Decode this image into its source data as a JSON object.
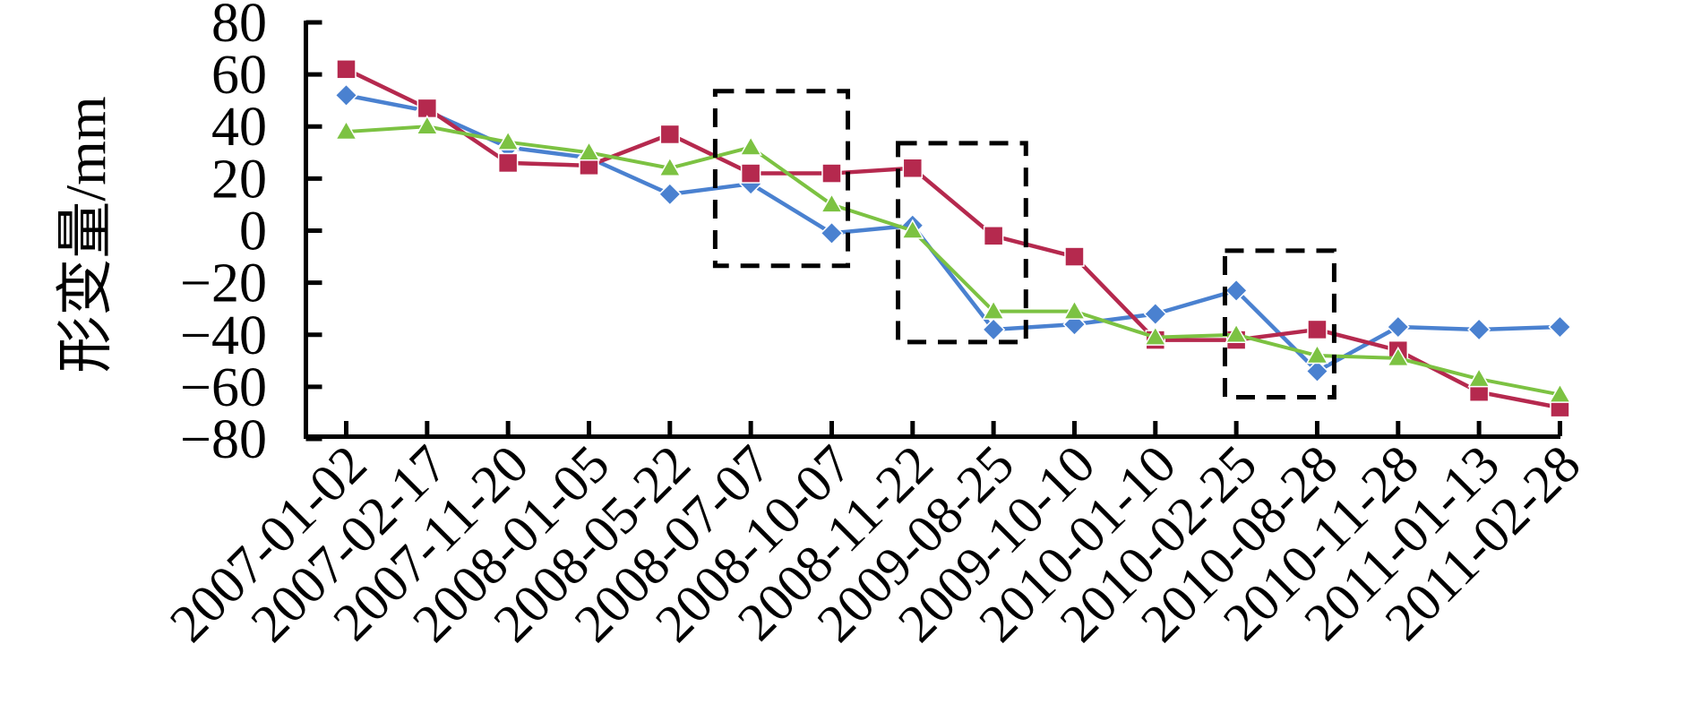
{
  "chart_data": {
    "type": "line",
    "title": "",
    "xlabel": "",
    "ylabel": "形变量/mm",
    "ylim": [
      -80,
      80
    ],
    "yticks": [
      80,
      60,
      40,
      20,
      0,
      -20,
      -40,
      -60,
      -80
    ],
    "grid": false,
    "legend": "none",
    "background": "#ffffff",
    "axis_color": "#000000",
    "categories": [
      "2007-01-02",
      "2007-02-17",
      "2007-11-20",
      "2008-01-05",
      "2008-05-22",
      "2008-07-07",
      "2008-10-07",
      "2008-11-22",
      "2009-08-25",
      "2009-10-10",
      "2010-01-10",
      "2010-02-25",
      "2010-08-28",
      "2010-11-28",
      "2011-01-13",
      "2011-02-28"
    ],
    "series": [
      {
        "name": "blue-diamond-series",
        "marker": "diamond",
        "color": "#4A81D0",
        "values": [
          52,
          46,
          32,
          28,
          14,
          18,
          -1,
          2,
          -38,
          -36,
          -32,
          -23,
          -54,
          -37,
          -38,
          -37
        ]
      },
      {
        "name": "red-square-series",
        "marker": "square",
        "color": "#B5294E",
        "values": [
          62,
          47,
          26,
          25,
          37,
          22,
          22,
          24,
          -2,
          -10,
          -42,
          -42,
          -38,
          -46,
          -62,
          -68
        ]
      },
      {
        "name": "green-triangle-series",
        "marker": "triangle",
        "color": "#7CC242",
        "values": [
          38,
          40,
          34,
          30,
          24,
          32,
          10,
          0,
          -31,
          -31,
          -41,
          -40,
          -48,
          -49,
          -57,
          -63
        ]
      }
    ],
    "annotations": {
      "dashed_boxes": [
        {
          "i0": 4.56,
          "i1": 6.2,
          "v_top": 53.6,
          "v_bottom": -13.5
        },
        {
          "i0": 6.82,
          "i1": 8.4,
          "v_top": 33.6,
          "v_bottom": -42.8
        },
        {
          "i0": 10.86,
          "i1": 12.21,
          "v_top": -7.7,
          "v_bottom": -64.0
        }
      ]
    }
  }
}
